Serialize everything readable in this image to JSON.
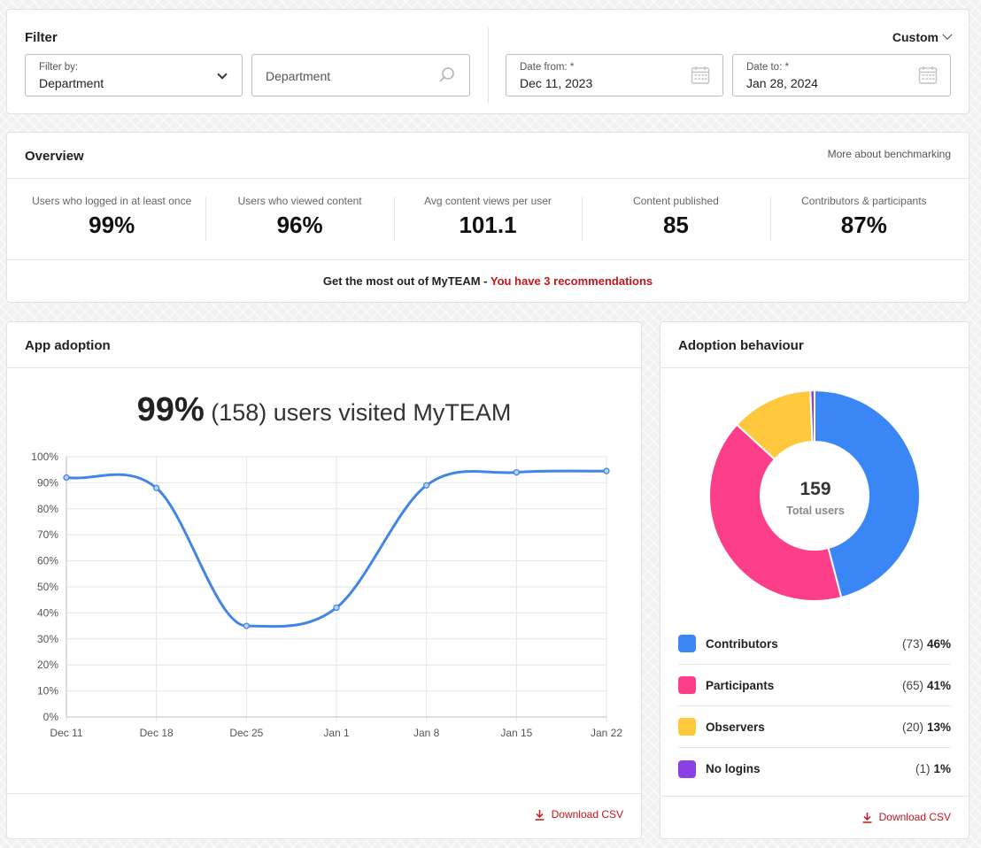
{
  "filter": {
    "title": "Filter",
    "range_select": "Custom",
    "filter_by_label": "Filter by:",
    "filter_by_value": "Department",
    "department_placeholder": "Department",
    "date_from_label": "Date from: *",
    "date_from_value": "Dec 11, 2023",
    "date_to_label": "Date to: *",
    "date_to_value": "Jan 28, 2024"
  },
  "overview": {
    "title": "Overview",
    "benchmark_link": "More about benchmarking",
    "metrics": [
      {
        "label": "Users who logged in at least once",
        "value": "99%"
      },
      {
        "label": "Users who viewed content",
        "value": "96%"
      },
      {
        "label": "Avg content views per user",
        "value": "101.1"
      },
      {
        "label": "Content published",
        "value": "85"
      },
      {
        "label": "Contributors & participants",
        "value": "87%"
      }
    ],
    "reco_prefix": "Get the most out of MyTEAM - ",
    "reco_link": "You have 3 recommendations"
  },
  "app_adoption": {
    "title": "App adoption",
    "headline_pct": "99%",
    "headline_rest": " (158) users visited MyTEAM",
    "download": "Download CSV"
  },
  "chart_data": {
    "type": "line",
    "x": [
      "Dec 11",
      "Dec 18",
      "Dec 25",
      "Jan 1",
      "Jan 8",
      "Jan 15",
      "Jan 22"
    ],
    "series": [
      {
        "values": [
          92,
          88,
          35,
          42,
          89,
          94,
          94.5
        ]
      }
    ],
    "ylim": [
      0,
      100
    ],
    "yticks": [
      "0%",
      "10%",
      "20%",
      "30%",
      "40%",
      "50%",
      "60%",
      "70%",
      "80%",
      "90%",
      "100%"
    ],
    "grid": true,
    "color": "#4285e8"
  },
  "adoption_behaviour": {
    "title": "Adoption behaviour",
    "total": "159",
    "total_label": "Total users",
    "download": "Download CSV",
    "segments": [
      {
        "name": "Contributors",
        "count": "(73)",
        "pct": "46%",
        "value": 73,
        "color": "#3b86f6"
      },
      {
        "name": "Participants",
        "count": "(65)",
        "pct": "41%",
        "value": 65,
        "color": "#fd3f8b"
      },
      {
        "name": "Observers",
        "count": "(20)",
        "pct": "13%",
        "value": 20,
        "color": "#ffc83d"
      },
      {
        "name": "No logins",
        "count": "(1)",
        "pct": "1%",
        "value": 1,
        "color": "#8d3fe6"
      }
    ]
  }
}
